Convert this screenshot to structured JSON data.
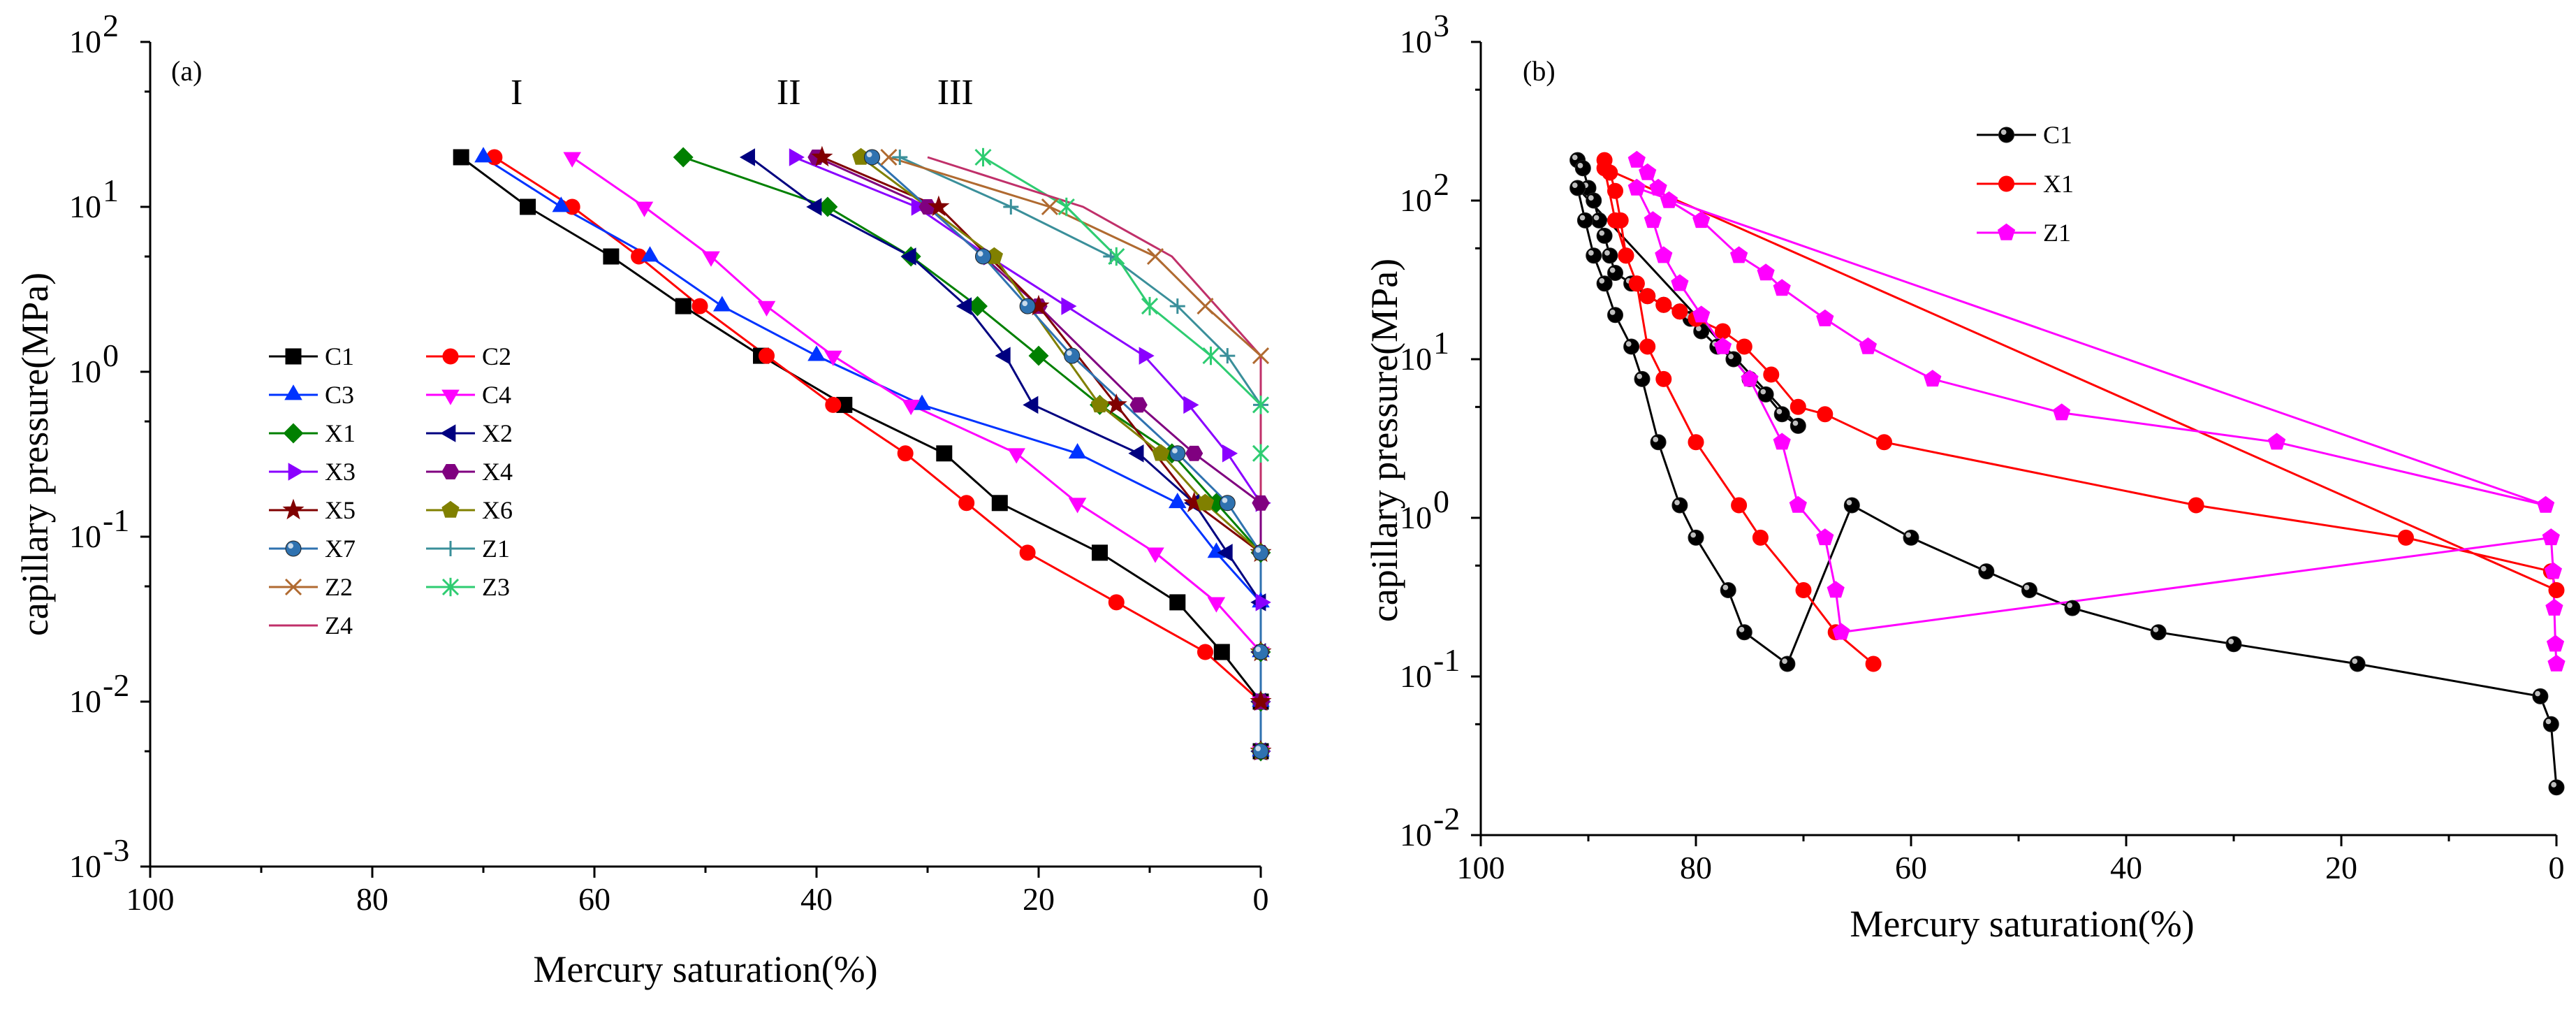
{
  "chart_data": [
    {
      "type": "line",
      "panel_label": "(a)",
      "xlabel": "Mercury saturation(%)",
      "ylabel": "capillary pressure(MPa)",
      "xlim": [
        100,
        0
      ],
      "ylim": [
        0.001,
        100
      ],
      "y_scale": "log",
      "x_ticks": [
        "100",
        "80",
        "60",
        "40",
        "20",
        "0"
      ],
      "y_ticks": [
        {
          "base": "10",
          "exp": "2"
        },
        {
          "base": "10",
          "exp": "1"
        },
        {
          "base": "10",
          "exp": "0"
        },
        {
          "base": "10",
          "exp": "-1"
        },
        {
          "base": "10",
          "exp": "-2"
        },
        {
          "base": "10",
          "exp": "-3"
        }
      ],
      "legend_position": "center-left",
      "annotations": [
        {
          "text": "I",
          "x": 67,
          "y": 42
        },
        {
          "text": "II",
          "x": 42.5,
          "y": 42
        },
        {
          "text": "III",
          "x": 27.5,
          "y": 42
        }
      ],
      "series": [
        {
          "name": "C1",
          "color": "#000000",
          "marker": "square",
          "x": [
            72,
            66,
            58.5,
            52,
            45,
            37.5,
            28.5,
            23.5,
            14.5,
            7.5,
            3.5,
            0,
            0
          ],
          "y": [
            20,
            10,
            5,
            2.5,
            1.25,
            0.63,
            0.32,
            0.16,
            0.08,
            0.04,
            0.02,
            0.01,
            0.005
          ]
        },
        {
          "name": "C2",
          "color": "#ff0000",
          "marker": "circle",
          "x": [
            69,
            62,
            56,
            50.5,
            44.5,
            38.5,
            32,
            26.5,
            21,
            13,
            5,
            0,
            0
          ],
          "y": [
            20,
            10,
            5,
            2.5,
            1.25,
            0.63,
            0.32,
            0.16,
            0.08,
            0.04,
            0.02,
            0.01,
            0.005
          ]
        },
        {
          "name": "C3",
          "color": "#0033ff",
          "marker": "triangle-up",
          "x": [
            70,
            63,
            55,
            48.5,
            40,
            30.5,
            16.5,
            7.5,
            4,
            0,
            0,
            0,
            0
          ],
          "y": [
            20,
            10,
            5,
            2.5,
            1.25,
            0.63,
            0.32,
            0.16,
            0.08,
            0.04,
            0.02,
            0.01,
            0.005
          ]
        },
        {
          "name": "C4",
          "color": "#ff00ff",
          "marker": "triangle-down",
          "x": [
            62,
            55.5,
            49.5,
            44.5,
            38.5,
            31.5,
            22,
            16.5,
            9.5,
            4,
            0,
            0,
            0
          ],
          "y": [
            20,
            10,
            5,
            2.5,
            1.25,
            0.63,
            0.32,
            0.16,
            0.08,
            0.04,
            0.02,
            0.01,
            0.005
          ]
        },
        {
          "name": "X1",
          "color": "#008000",
          "marker": "diamond",
          "x": [
            52,
            39,
            31.5,
            25.5,
            20,
            14.5,
            8,
            4,
            0,
            0,
            0,
            0
          ],
          "y": [
            20,
            10,
            5,
            2.5,
            1.25,
            0.63,
            0.32,
            0.16,
            0.08,
            0.02,
            0.01,
            0.005
          ]
        },
        {
          "name": "X2",
          "color": "#000080",
          "marker": "triangle-left",
          "x": [
            46,
            40,
            31.5,
            26.5,
            23,
            20.5,
            11,
            6,
            3,
            0,
            0,
            0,
            0
          ],
          "y": [
            20,
            10,
            5,
            2.5,
            1.25,
            0.63,
            0.32,
            0.16,
            0.08,
            0.04,
            0.02,
            0.01,
            0.005
          ]
        },
        {
          "name": "X3",
          "color": "#8a00ff",
          "marker": "triangle-right",
          "x": [
            42,
            31,
            24.5,
            17.5,
            10.5,
            6.5,
            3,
            0,
            0,
            0,
            0
          ],
          "y": [
            20,
            10,
            5,
            2.5,
            1.25,
            0.63,
            0.32,
            0.16,
            0.04,
            0.01,
            0.005
          ]
        },
        {
          "name": "X4",
          "color": "#800080",
          "marker": "hexagon",
          "x": [
            40,
            30,
            20,
            11,
            6,
            0,
            0,
            0,
            0,
            0
          ],
          "y": [
            20,
            10,
            2.5,
            0.63,
            0.32,
            0.16,
            0.08,
            0.02,
            0.01,
            0.005
          ]
        },
        {
          "name": "X5",
          "color": "#800000",
          "marker": "star",
          "x": [
            39.5,
            29,
            20,
            13,
            6,
            0,
            0,
            0,
            0
          ],
          "y": [
            20,
            10,
            2.5,
            0.63,
            0.16,
            0.08,
            0.02,
            0.01,
            0.005
          ]
        },
        {
          "name": "X6",
          "color": "#808000",
          "marker": "pentagon",
          "x": [
            36,
            24,
            14.5,
            9,
            5,
            0,
            0,
            0
          ],
          "y": [
            20,
            5,
            0.63,
            0.32,
            0.16,
            0.08,
            0.02,
            0.005
          ]
        },
        {
          "name": "X7",
          "color": "#2f72b0",
          "marker": "sphere",
          "x": [
            35,
            25,
            21,
            17,
            7.5,
            3,
            0,
            0,
            0
          ],
          "y": [
            20,
            5,
            2.5,
            1.25,
            0.32,
            0.16,
            0.08,
            0.02,
            0.005
          ]
        },
        {
          "name": "Z1",
          "color": "#3a8f9a",
          "marker": "plus",
          "x": [
            32.5,
            22.5,
            13.5,
            7.5,
            3,
            0
          ],
          "y": [
            20,
            10,
            5,
            2.5,
            1.25,
            0.63
          ]
        },
        {
          "name": "Z2",
          "color": "#b06a30",
          "marker": "x",
          "x": [
            33.5,
            19,
            9.5,
            5,
            0
          ],
          "y": [
            20,
            10,
            5,
            2.5,
            1.25
          ]
        },
        {
          "name": "Z3",
          "color": "#2ecc71",
          "marker": "asterisk",
          "x": [
            25,
            17.5,
            13,
            10,
            4.5,
            0,
            0
          ],
          "y": [
            20,
            10,
            5,
            2.5,
            1.25,
            0.63,
            0.32
          ]
        },
        {
          "name": "Z4",
          "color": "#c0306a",
          "marker": "none",
          "x": [
            30,
            16,
            8,
            0,
            0
          ],
          "y": [
            20,
            10,
            5,
            1.25,
            0.16
          ]
        }
      ]
    },
    {
      "type": "line",
      "panel_label": "(b)",
      "xlabel": "Mercury saturation(%)",
      "ylabel": "capillary pressure(MPa)",
      "xlim": [
        100,
        0
      ],
      "ylim": [
        0.01,
        1000
      ],
      "y_scale": "log",
      "x_ticks": [
        "100",
        "80",
        "60",
        "40",
        "20",
        "0"
      ],
      "y_ticks": [
        {
          "base": "10",
          "exp": "3"
        },
        {
          "base": "10",
          "exp": "2"
        },
        {
          "base": "10",
          "exp": "1"
        },
        {
          "base": "10",
          "exp": "0"
        },
        {
          "base": "10",
          "exp": "-1"
        },
        {
          "base": "10",
          "exp": "-2"
        }
      ],
      "legend_position": "top-left",
      "series": [
        {
          "name": "C1",
          "color": "#000000",
          "marker": "sphere",
          "x": [
            91,
            90.5,
            90,
            89.5,
            89,
            88.5,
            88,
            87.5,
            86,
            84.5,
            83,
            81.5,
            80.5,
            79.5,
            78,
            76.5,
            75,
            73.5,
            72,
            70.5,
            91,
            90.3,
            89.5,
            88.5,
            87.5,
            86,
            85,
            83.5,
            81.5,
            80,
            77,
            75.5,
            71.5,
            65.5,
            60,
            53,
            49,
            45,
            37,
            30,
            18.5,
            1.5,
            0.5,
            0
          ],
          "y": [
            180,
            160,
            120,
            100,
            75,
            60,
            45,
            35,
            30,
            25,
            22,
            20,
            18,
            15,
            12,
            10,
            7.5,
            6,
            4.5,
            3.8,
            120,
            75,
            45,
            30,
            19,
            12,
            7.5,
            3,
            1.2,
            0.75,
            0.35,
            0.19,
            0.12,
            1.2,
            0.75,
            0.46,
            0.35,
            0.27,
            0.19,
            0.16,
            0.12,
            0.075,
            0.05,
            0.02
          ]
        },
        {
          "name": "X1",
          "color": "#ff0000",
          "marker": "circle",
          "x": [
            88.5,
            88,
            87.5,
            87,
            86.5,
            85.5,
            84.5,
            83,
            81.5,
            80,
            77.5,
            75.5,
            73,
            70.5,
            68,
            62.5,
            33.5,
            14,
            0.5,
            0,
            88.5,
            87.5,
            86.5,
            85.5,
            84.5,
            83,
            80,
            76,
            74,
            70,
            67,
            63.5
          ],
          "y": [
            180,
            150,
            115,
            75,
            45,
            30,
            25,
            22,
            20,
            18,
            15,
            12,
            8,
            5,
            4.5,
            3,
            1.2,
            0.75,
            0.46,
            0.35,
            160,
            75,
            45,
            30,
            12,
            7.5,
            3,
            1.2,
            0.75,
            0.35,
            0.19,
            0.12
          ]
        },
        {
          "name": "Z1",
          "color": "#ff00ff",
          "marker": "pentagon",
          "x": [
            85.5,
            84.5,
            83.5,
            82.5,
            79.5,
            76,
            73.5,
            72,
            68,
            64,
            58,
            46,
            26,
            1,
            85.5,
            84,
            83,
            81.5,
            79.5,
            77.5,
            75,
            72,
            70.5,
            68,
            67,
            66.5,
            0.5,
            0.3,
            0.2,
            0.1,
            0
          ],
          "y": [
            180,
            150,
            120,
            100,
            75,
            45,
            35,
            28,
            18,
            12,
            7.5,
            4.6,
            3,
            1.2,
            120,
            75,
            45,
            30,
            19,
            12,
            7.5,
            3,
            1.2,
            0.75,
            0.35,
            0.19,
            0.75,
            0.46,
            0.27,
            0.16,
            0.12
          ]
        }
      ]
    }
  ]
}
